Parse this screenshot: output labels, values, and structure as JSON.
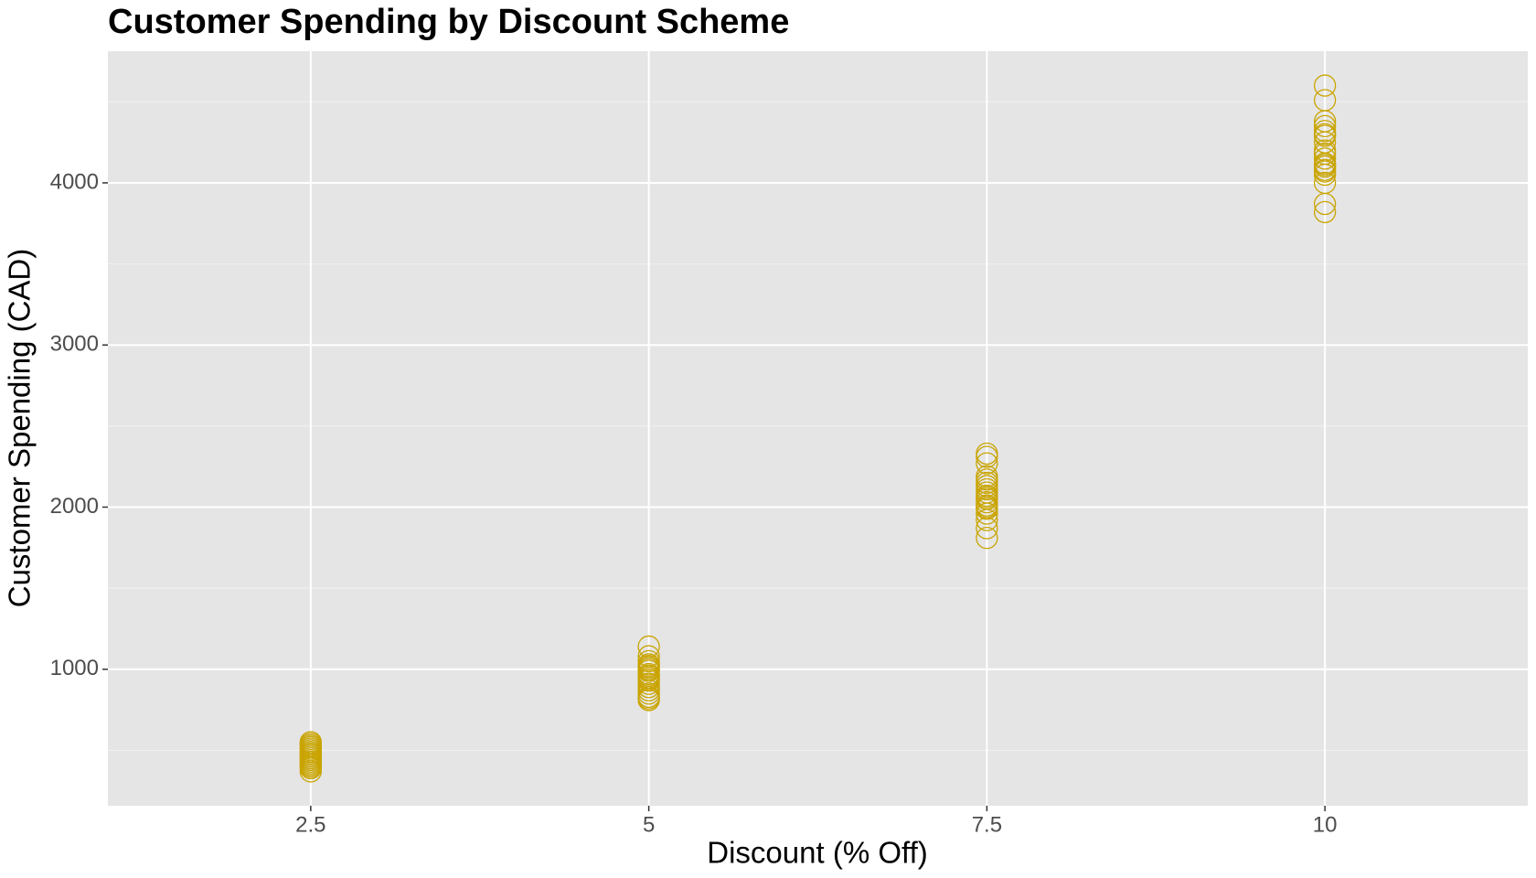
{
  "chart_data": {
    "type": "scatter",
    "title": "Customer Spending by Discount Scheme",
    "x_label": "Discount (% Off)",
    "y_label": "Customer Spending (CAD)",
    "series": [
      {
        "color": "#c9a400",
        "x": [
          2.5,
          2.5,
          2.5,
          2.5,
          2.5,
          2.5,
          2.5,
          2.5,
          2.5,
          2.5,
          2.5,
          2.5,
          2.5,
          2.5,
          2.5,
          2.5,
          2.5,
          2.5,
          2.5,
          2.5,
          5,
          5,
          5,
          5,
          5,
          5,
          5,
          5,
          5,
          5,
          5,
          5,
          5,
          5,
          5,
          5,
          5,
          5,
          5,
          5,
          7.5,
          7.5,
          7.5,
          7.5,
          7.5,
          7.5,
          7.5,
          7.5,
          7.5,
          7.5,
          7.5,
          7.5,
          7.5,
          7.5,
          7.5,
          7.5,
          7.5,
          7.5,
          7.5,
          7.5,
          10,
          10,
          10,
          10,
          10,
          10,
          10,
          10,
          10,
          10,
          10,
          10,
          10,
          10,
          10,
          10,
          10,
          10,
          10,
          10
        ],
        "values": [
          370,
          390,
          410,
          420,
          440,
          450,
          460,
          470,
          480,
          490,
          500,
          510,
          520,
          530,
          550,
          430,
          400,
          460,
          480,
          540,
          810,
          830,
          850,
          870,
          890,
          910,
          930,
          950,
          970,
          990,
          1000,
          1010,
          1030,
          1050,
          1080,
          1140,
          820,
          940,
          960,
          1020,
          1810,
          1870,
          1920,
          1960,
          1990,
          2010,
          2030,
          2050,
          2070,
          2090,
          2110,
          2130,
          2150,
          2170,
          2190,
          2270,
          2310,
          2330,
          2000,
          2060,
          3820,
          3870,
          4000,
          4050,
          4080,
          4100,
          4120,
          4150,
          4200,
          4250,
          4290,
          4320,
          4350,
          4380,
          4510,
          4600,
          4070,
          4180,
          4300,
          4110
        ]
      }
    ],
    "xlim": [
      1.0,
      11.5
    ],
    "ylim": [
      158,
      4812
    ],
    "xticks": [
      2.5,
      5,
      7.5,
      10
    ],
    "yticks": [
      1000,
      2000,
      3000,
      4000
    ],
    "y_minor_ticks": [
      500,
      1500,
      2500,
      3500,
      4500
    ],
    "grid": true
  }
}
